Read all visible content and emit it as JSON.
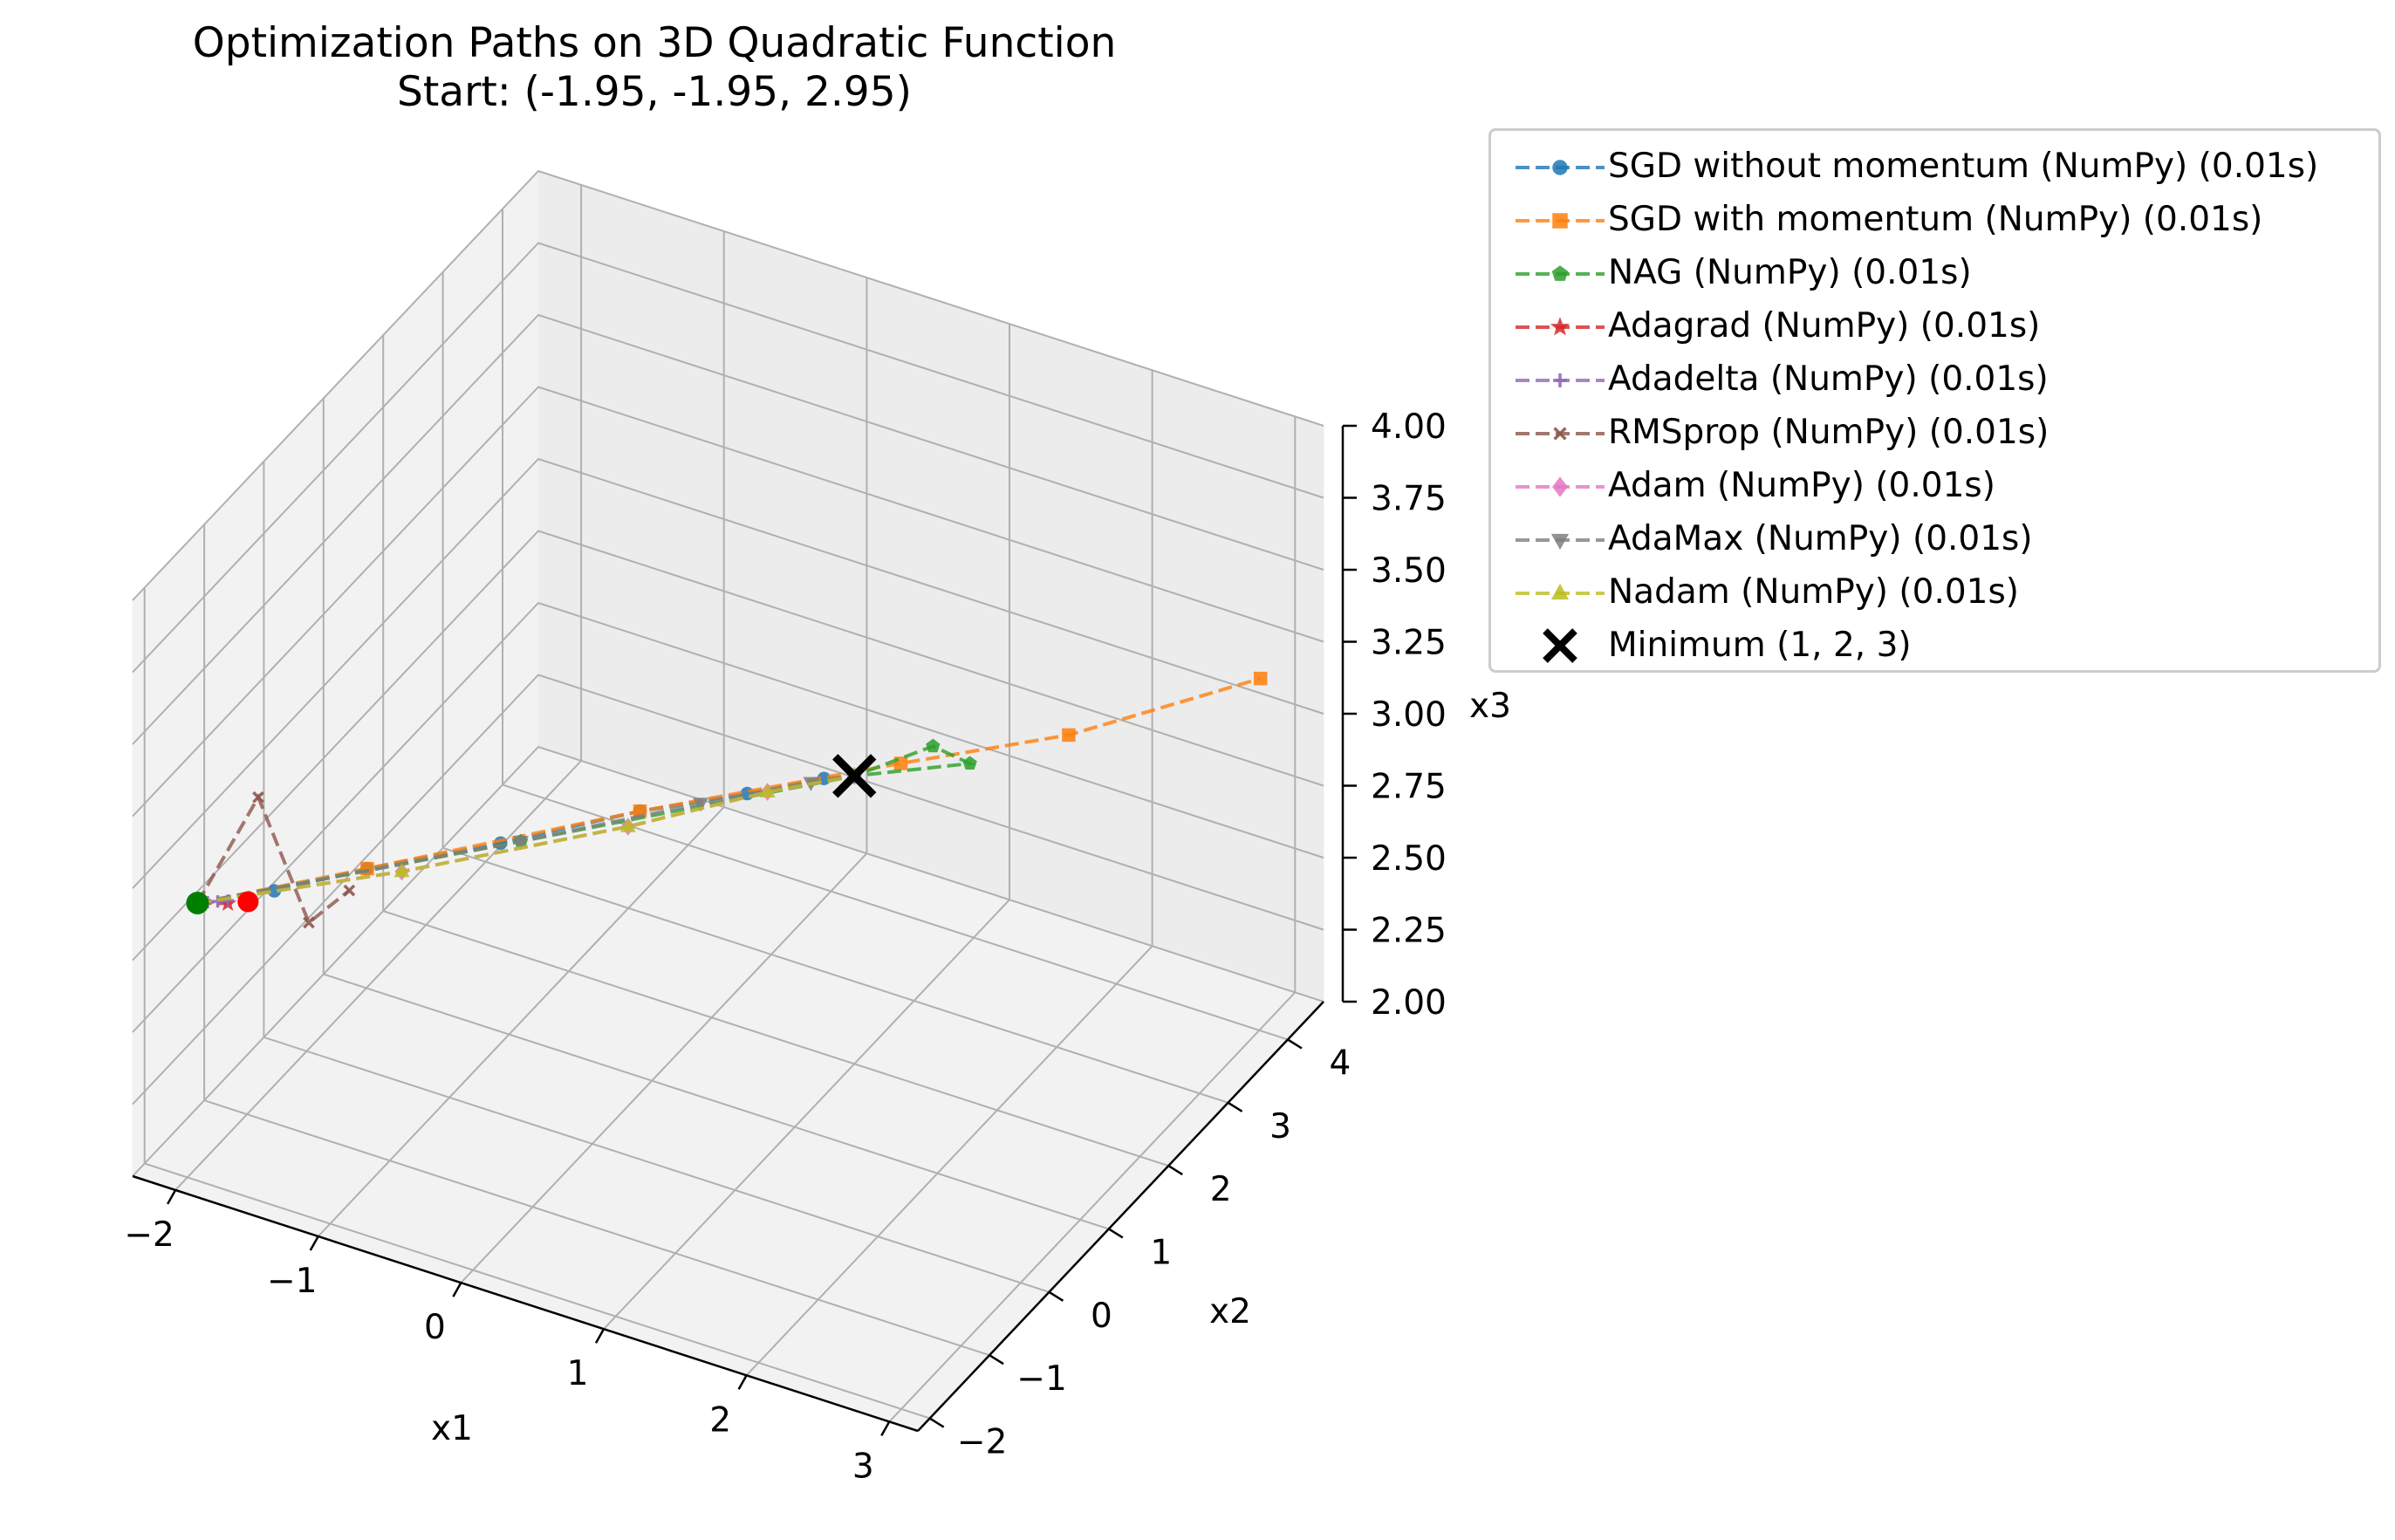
{
  "title": {
    "line1": "Optimization Paths on 3D Quadratic Function",
    "line2": "Start: (-1.95, -1.95, 2.95)"
  },
  "chart_data": {
    "type": "line",
    "projection": "3d",
    "title": "Optimization Paths on 3D Quadratic Function\nStart: (-1.95, -1.95, 2.95)",
    "xlabel": "x1",
    "ylabel": "x2",
    "zlabel": "x3",
    "xlim": [
      -2.3,
      3.2
    ],
    "ylim": [
      -2.2,
      4.6
    ],
    "zlim": [
      2.0,
      4.0
    ],
    "x_ticks": [
      "−2",
      "−1",
      "0",
      "1",
      "2",
      "3"
    ],
    "x_tick_values": [
      -2,
      -1,
      0,
      1,
      2,
      3
    ],
    "y_ticks": [
      "−2",
      "−1",
      "0",
      "1",
      "2",
      "3",
      "4"
    ],
    "y_tick_values": [
      -2,
      -1,
      0,
      1,
      2,
      3,
      4
    ],
    "z_ticks": [
      "2.00",
      "2.25",
      "2.50",
      "2.75",
      "3.00",
      "3.25",
      "3.50",
      "3.75",
      "4.00"
    ],
    "z_tick_values": [
      2.0,
      2.25,
      2.5,
      2.75,
      3.0,
      3.25,
      3.5,
      3.75,
      4.0
    ],
    "grid": true,
    "legend_position": "outside upper right",
    "start_point": {
      "x": -1.95,
      "y": -1.95,
      "z": 2.95,
      "color": "#008000"
    },
    "series": [
      {
        "name": "SGD without momentum (NumPy) (0.01s)",
        "color": "#1f77b4",
        "marker": "circle",
        "x": [
          -1.95,
          -1.6,
          -1.2,
          -0.6,
          0.0,
          0.5,
          0.85,
          1.0
        ],
        "y": [
          -1.95,
          -1.5,
          -0.9,
          -0.1,
          0.8,
          1.4,
          1.85,
          2.0
        ],
        "z": [
          2.95,
          2.95,
          2.96,
          2.97,
          2.98,
          2.99,
          3.0,
          3.0
        ]
      },
      {
        "name": "SGD with momentum (NumPy) (0.01s)",
        "color": "#ff7f0e",
        "marker": "square",
        "x": [
          -1.95,
          -1.2,
          0.0,
          1.2,
          2.0,
          2.8
        ],
        "y": [
          -1.95,
          -0.9,
          0.8,
          2.3,
          3.2,
          4.5
        ],
        "z": [
          2.95,
          2.96,
          2.98,
          3.01,
          3.04,
          3.08
        ]
      },
      {
        "name": "NAG (NumPy) (0.01s)",
        "color": "#2ca02c",
        "marker": "pentagon",
        "x": [
          -1.95,
          -0.5,
          1.0,
          1.3,
          1.6,
          1.0
        ],
        "y": [
          -1.95,
          0.0,
          2.0,
          2.6,
          2.5,
          2.0
        ],
        "z": [
          2.95,
          2.97,
          3.0,
          3.02,
          3.03,
          3.0
        ]
      },
      {
        "name": "Adagrad (NumPy) (0.01s)",
        "color": "#d62728",
        "marker": "star",
        "x": [
          -1.95,
          -1.8,
          -1.7
        ],
        "y": [
          -1.95,
          -1.8,
          -1.7
        ],
        "z": [
          2.95,
          2.94,
          2.94
        ]
      },
      {
        "name": "Adadelta (NumPy) (0.01s)",
        "color": "#9467bd",
        "marker": "plus",
        "x": [
          -1.95,
          -1.9,
          -1.85,
          -1.8
        ],
        "y": [
          -1.95,
          -1.9,
          -1.85,
          -1.8
        ],
        "z": [
          2.95,
          2.95,
          2.95,
          2.95
        ]
      },
      {
        "name": "RMSprop (NumPy) (0.01s)",
        "color": "#8c564b",
        "marker": "x",
        "x": [
          -1.95,
          -1.65,
          -1.4,
          -1.2
        ],
        "y": [
          -1.95,
          -1.65,
          -1.4,
          -1.2
        ],
        "z": [
          2.95,
          3.3,
          2.85,
          2.95
        ]
      },
      {
        "name": "Adam (NumPy) (0.01s)",
        "color": "#e377c2",
        "marker": "diamond",
        "x": [
          -1.95,
          -1.0,
          0.0,
          0.6,
          1.0
        ],
        "y": [
          -1.95,
          -0.8,
          0.6,
          1.5,
          2.0
        ],
        "z": [
          2.95,
          2.96,
          2.97,
          2.99,
          3.0
        ]
      },
      {
        "name": "AdaMax (NumPy) (0.01s)",
        "color": "#7f7f7f",
        "marker": "triangle-down",
        "x": [
          -1.95,
          -0.5,
          0.3,
          0.8,
          1.0
        ],
        "y": [
          -1.95,
          0.0,
          1.1,
          1.75,
          2.0
        ],
        "z": [
          2.95,
          2.97,
          2.99,
          3.0,
          3.0
        ]
      },
      {
        "name": "Nadam (NumPy) (0.01s)",
        "color": "#bcbd22",
        "marker": "triangle-up",
        "x": [
          -1.95,
          -1.0,
          0.0,
          0.6,
          1.0
        ],
        "y": [
          -1.95,
          -0.8,
          0.6,
          1.5,
          2.0
        ],
        "z": [
          2.95,
          2.96,
          2.97,
          2.99,
          3.0
        ]
      }
    ],
    "minimum": {
      "name": "Minimum (1, 2, 3)",
      "x": 1,
      "y": 2,
      "z": 3,
      "color": "#000000",
      "marker": "x"
    }
  }
}
